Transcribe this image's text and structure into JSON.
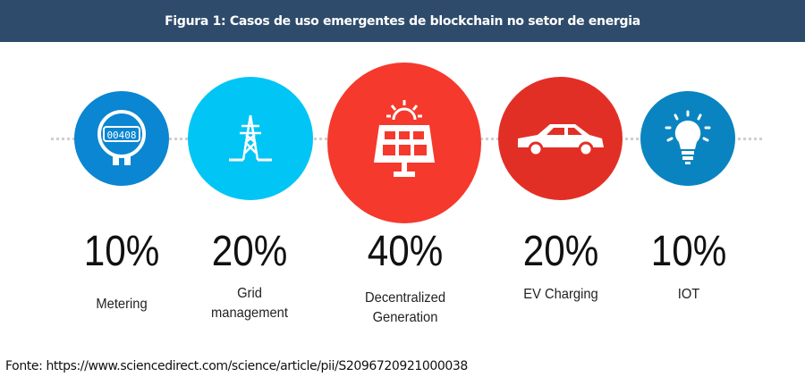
{
  "header": {
    "title": "Figura 1: Casos de uso emergentes de blockchain no setor de energia"
  },
  "items": [
    {
      "percent": "10%",
      "label_lines": [
        "Metering"
      ],
      "icon": "meter-icon",
      "color": "#0a86d2",
      "meter_reading": "00408"
    },
    {
      "percent": "20%",
      "label_lines": [
        "Grid",
        "management"
      ],
      "icon": "power-tower-icon",
      "color": "#00c5f5"
    },
    {
      "percent": "40%",
      "label_lines": [
        "Decentralized",
        "Generation"
      ],
      "icon": "solar-panel-icon",
      "color": "#f5392d"
    },
    {
      "percent": "20%",
      "label_lines": [
        "EV Charging"
      ],
      "icon": "car-icon",
      "color": "#e22f26"
    },
    {
      "percent": "10%",
      "label_lines": [
        "IOT"
      ],
      "icon": "lightbulb-icon",
      "color": "#0a84c0"
    }
  ],
  "source": "Fonte: https://www.sciencedirect.com/science/article/pii/S2096720921000038"
}
